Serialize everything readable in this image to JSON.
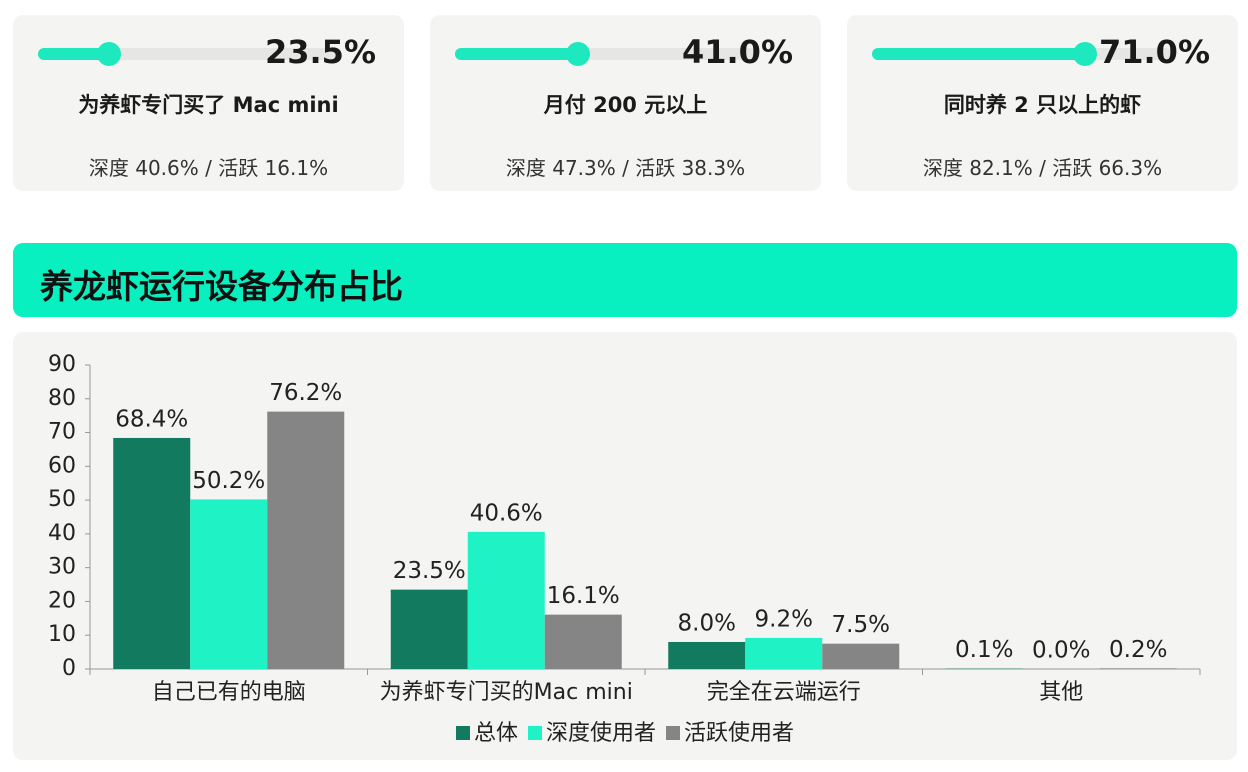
{
  "cards": [
    {
      "value": 23.5,
      "value_label": "23.5%",
      "label": "为养虾专门买了 Mac mini",
      "detail": "深度 40.6% / 活跃 16.1%"
    },
    {
      "value": 41.0,
      "value_label": "41.0%",
      "label": "月付 200 元以上",
      "detail": "深度 47.3% / 活跃 38.3%"
    },
    {
      "value": 71.0,
      "value_label": "71.0%",
      "label": "同时养 2 只以上的虾",
      "detail": "深度 82.1% / 活跃 66.3%"
    }
  ],
  "section_title": "养龙虾运行设备分布占比",
  "chart_data": {
    "type": "bar",
    "categories": [
      "自己已有的电脑",
      "为养虾专门买的Mac mini",
      "完全在云端运行",
      "其他"
    ],
    "series": [
      {
        "name": "总体",
        "color": "#127a5f",
        "values": [
          68.4,
          23.5,
          8.0,
          0.1
        ],
        "value_labels": [
          "68.4%",
          "23.5%",
          "8.0%",
          "0.1%"
        ]
      },
      {
        "name": "深度使用者",
        "color": "#1ff2c4",
        "values": [
          50.2,
          40.6,
          9.2,
          0.0
        ],
        "value_labels": [
          "50.2%",
          "40.6%",
          "9.2%",
          "0.0%"
        ]
      },
      {
        "name": "活跃使用者",
        "color": "#858585",
        "values": [
          76.2,
          16.1,
          7.5,
          0.2
        ],
        "value_labels": [
          "76.2%",
          "16.1%",
          "7.5%",
          "0.2%"
        ]
      }
    ],
    "ylim": [
      0,
      90
    ],
    "yticks": [
      0,
      10,
      20,
      30,
      40,
      50,
      60,
      70,
      80,
      90
    ],
    "grid": false
  }
}
